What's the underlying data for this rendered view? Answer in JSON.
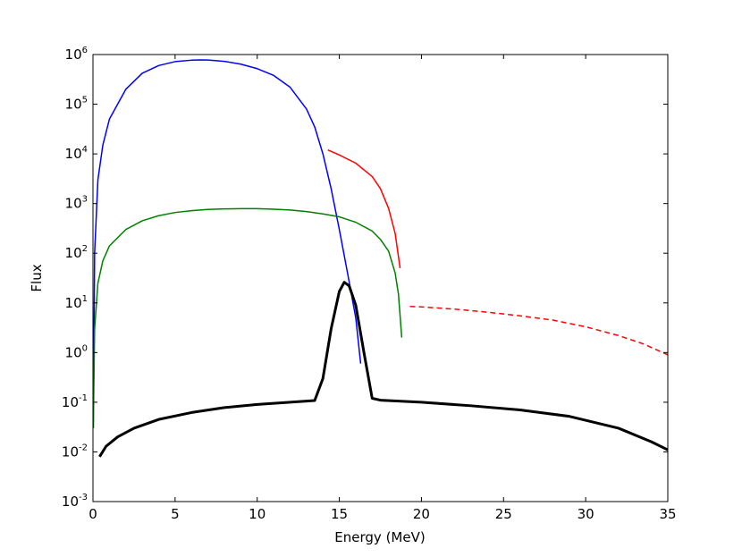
{
  "chart_data": {
    "type": "line",
    "xlabel": "Energy (MeV)",
    "ylabel": "Flux",
    "xlim": [
      0,
      35
    ],
    "ylim": [
      0.001,
      1000000
    ],
    "yscale": "log",
    "grid": false,
    "x_ticks": [
      "0",
      "5",
      "10",
      "15",
      "20",
      "25",
      "30",
      "35"
    ],
    "y_ticks": [
      {
        "base": "10",
        "exp": "-3"
      },
      {
        "base": "10",
        "exp": "-2"
      },
      {
        "base": "10",
        "exp": "-1"
      },
      {
        "base": "10",
        "exp": "0"
      },
      {
        "base": "10",
        "exp": "1"
      },
      {
        "base": "10",
        "exp": "2"
      },
      {
        "base": "10",
        "exp": "3"
      },
      {
        "base": "10",
        "exp": "4"
      },
      {
        "base": "10",
        "exp": "5"
      },
      {
        "base": "10",
        "exp": "6"
      }
    ],
    "series": [
      {
        "color": "#0000ff",
        "style": "solid",
        "width": 1.5,
        "points": [
          [
            0.02,
            0.03
          ],
          [
            0.1,
            100
          ],
          [
            0.3,
            3000
          ],
          [
            0.6,
            15000
          ],
          [
            1,
            50000
          ],
          [
            2,
            200000
          ],
          [
            3,
            420000
          ],
          [
            4,
            600000
          ],
          [
            5,
            720000
          ],
          [
            6,
            770000
          ],
          [
            6.5,
            780000
          ],
          [
            7,
            775000
          ],
          [
            8,
            730000
          ],
          [
            9,
            640000
          ],
          [
            10,
            520000
          ],
          [
            11,
            380000
          ],
          [
            12,
            220000
          ],
          [
            13,
            80000
          ],
          [
            13.5,
            35000
          ],
          [
            14,
            10000
          ],
          [
            14.5,
            2000
          ],
          [
            15,
            300
          ],
          [
            15.5,
            40
          ],
          [
            16,
            5
          ],
          [
            16.3,
            0.6
          ]
        ]
      },
      {
        "color": "#008000",
        "style": "solid",
        "width": 1.5,
        "points": [
          [
            0.02,
            0.03
          ],
          [
            0.1,
            3
          ],
          [
            0.3,
            25
          ],
          [
            0.6,
            70
          ],
          [
            1,
            140
          ],
          [
            2,
            300
          ],
          [
            3,
            450
          ],
          [
            4,
            570
          ],
          [
            5,
            660
          ],
          [
            6,
            720
          ],
          [
            7,
            760
          ],
          [
            8,
            780
          ],
          [
            9,
            790
          ],
          [
            10,
            790
          ],
          [
            11,
            770
          ],
          [
            12,
            740
          ],
          [
            13,
            690
          ],
          [
            14,
            620
          ],
          [
            15,
            540
          ],
          [
            16,
            420
          ],
          [
            17,
            280
          ],
          [
            17.5,
            190
          ],
          [
            18,
            110
          ],
          [
            18.4,
            40
          ],
          [
            18.6,
            15
          ],
          [
            18.8,
            2
          ]
        ]
      },
      {
        "color": "#ff0000",
        "style": "solid",
        "width": 1.5,
        "points": [
          [
            14.3,
            12000
          ],
          [
            15,
            9500
          ],
          [
            16,
            6500
          ],
          [
            17,
            3500
          ],
          [
            17.5,
            2000
          ],
          [
            18,
            800
          ],
          [
            18.4,
            250
          ],
          [
            18.7,
            50
          ]
        ]
      },
      {
        "color": "#ff0000",
        "style": "dashed",
        "width": 1.5,
        "points": [
          [
            19.3,
            8.5
          ],
          [
            20,
            8.3
          ],
          [
            22,
            7.5
          ],
          [
            24,
            6.5
          ],
          [
            26,
            5.5
          ],
          [
            28,
            4.5
          ],
          [
            30,
            3.3
          ],
          [
            32,
            2.2
          ],
          [
            33.5,
            1.5
          ],
          [
            35,
            0.9
          ]
        ]
      },
      {
        "color": "#000000",
        "style": "solid",
        "width": 3,
        "points": [
          [
            0.4,
            0.008
          ],
          [
            0.8,
            0.013
          ],
          [
            1.5,
            0.02
          ],
          [
            2.5,
            0.03
          ],
          [
            4,
            0.045
          ],
          [
            6,
            0.062
          ],
          [
            8,
            0.078
          ],
          [
            10,
            0.09
          ],
          [
            12,
            0.1
          ],
          [
            13.5,
            0.108
          ],
          [
            14,
            0.3
          ],
          [
            14.5,
            3
          ],
          [
            15,
            17
          ],
          [
            15.3,
            26
          ],
          [
            15.6,
            22
          ],
          [
            16,
            9
          ],
          [
            16.5,
            1
          ],
          [
            17,
            0.12
          ],
          [
            17.5,
            0.11
          ],
          [
            20,
            0.1
          ],
          [
            23,
            0.085
          ],
          [
            26,
            0.07
          ],
          [
            29,
            0.052
          ],
          [
            32,
            0.03
          ],
          [
            34,
            0.016
          ],
          [
            35,
            0.011
          ]
        ]
      }
    ]
  }
}
